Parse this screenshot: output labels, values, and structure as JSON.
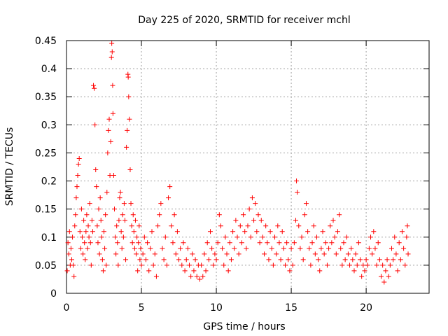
{
  "chart_data": {
    "type": "scatter",
    "title": "Day 225 of 2020, SRMTID for receiver mchl",
    "xlabel": "GPS time / hours",
    "ylabel": "SRMTID / TECUs",
    "xlim": [
      0,
      24.2
    ],
    "ylim": [
      0,
      0.45
    ],
    "xticks": [
      0,
      5,
      10,
      15,
      20
    ],
    "xtick_labels": [
      "0",
      "5",
      "10",
      "15",
      "20"
    ],
    "yticks": [
      0,
      0.05,
      0.1,
      0.15,
      0.2,
      0.25,
      0.3,
      0.35,
      0.4,
      0.45
    ],
    "ytick_labels": [
      "0",
      "0.05",
      "0.1",
      "0.15",
      "0.2",
      "0.25",
      "0.3",
      "0.35",
      "0.4",
      "0.45"
    ],
    "grid": true,
    "marker": "+",
    "color": "#ff0000",
    "series": [
      {
        "name": "SRMTID",
        "points": [
          [
            0.05,
            0.04
          ],
          [
            0.1,
            0.09
          ],
          [
            0.15,
            0.07
          ],
          [
            0.2,
            0.11
          ],
          [
            0.25,
            0.05
          ],
          [
            0.3,
            0.08
          ],
          [
            0.35,
            0.06
          ],
          [
            0.4,
            0.1
          ],
          [
            0.45,
            0.05
          ],
          [
            0.5,
            0.03
          ],
          [
            0.55,
            0.12
          ],
          [
            0.6,
            0.14
          ],
          [
            0.65,
            0.17
          ],
          [
            0.7,
            0.19
          ],
          [
            0.75,
            0.21
          ],
          [
            0.8,
            0.23
          ],
          [
            0.85,
            0.24
          ],
          [
            0.9,
            0.11
          ],
          [
            0.95,
            0.08
          ],
          [
            1.0,
            0.15
          ],
          [
            1.05,
            0.1
          ],
          [
            1.1,
            0.07
          ],
          [
            1.15,
            0.13
          ],
          [
            1.2,
            0.09
          ],
          [
            1.25,
            0.06
          ],
          [
            1.3,
            0.11
          ],
          [
            1.35,
            0.14
          ],
          [
            1.4,
            0.08
          ],
          [
            1.45,
            0.12
          ],
          [
            1.5,
            0.1
          ],
          [
            1.55,
            0.16
          ],
          [
            1.6,
            0.09
          ],
          [
            1.65,
            0.05
          ],
          [
            1.7,
            0.13
          ],
          [
            1.75,
            0.11
          ],
          [
            1.8,
            0.37
          ],
          [
            1.85,
            0.365
          ],
          [
            1.9,
            0.3
          ],
          [
            1.95,
            0.22
          ],
          [
            2.0,
            0.19
          ],
          [
            2.05,
            0.12
          ],
          [
            2.1,
            0.09
          ],
          [
            2.15,
            0.15
          ],
          [
            2.2,
            0.07
          ],
          [
            2.25,
            0.17
          ],
          [
            2.3,
            0.13
          ],
          [
            2.35,
            0.1
          ],
          [
            2.4,
            0.06
          ],
          [
            2.45,
            0.04
          ],
          [
            2.5,
            0.11
          ],
          [
            2.55,
            0.08
          ],
          [
            2.6,
            0.14
          ],
          [
            2.65,
            0.05
          ],
          [
            2.7,
            0.18
          ],
          [
            2.75,
            0.25
          ],
          [
            2.8,
            0.29
          ],
          [
            2.85,
            0.31
          ],
          [
            2.9,
            0.21
          ],
          [
            2.95,
            0.27
          ],
          [
            3.0,
            0.42
          ],
          [
            3.02,
            0.445
          ],
          [
            3.05,
            0.43
          ],
          [
            3.08,
            0.37
          ],
          [
            3.1,
            0.32
          ],
          [
            3.15,
            0.21
          ],
          [
            3.2,
            0.15
          ],
          [
            3.25,
            0.1
          ],
          [
            3.3,
            0.07
          ],
          [
            3.35,
            0.12
          ],
          [
            3.4,
            0.09
          ],
          [
            3.45,
            0.05
          ],
          [
            3.5,
            0.13
          ],
          [
            3.55,
            0.17
          ],
          [
            3.6,
            0.18
          ],
          [
            3.65,
            0.11
          ],
          [
            3.7,
            0.08
          ],
          [
            3.75,
            0.14
          ],
          [
            3.8,
            0.1
          ],
          [
            3.85,
            0.16
          ],
          [
            3.9,
            0.13
          ],
          [
            3.95,
            0.06
          ],
          [
            4.0,
            0.26
          ],
          [
            4.05,
            0.29
          ],
          [
            4.1,
            0.39
          ],
          [
            4.12,
            0.385
          ],
          [
            4.15,
            0.35
          ],
          [
            4.2,
            0.31
          ],
          [
            4.25,
            0.22
          ],
          [
            4.3,
            0.16
          ],
          [
            4.35,
            0.12
          ],
          [
            4.4,
            0.09
          ],
          [
            4.45,
            0.14
          ],
          [
            4.5,
            0.11
          ],
          [
            4.55,
            0.08
          ],
          [
            4.6,
            0.13
          ],
          [
            4.65,
            0.07
          ],
          [
            4.7,
            0.1
          ],
          [
            4.75,
            0.04
          ],
          [
            4.8,
            0.09
          ],
          [
            4.85,
            0.12
          ],
          [
            4.9,
            0.06
          ],
          [
            4.95,
            0.08
          ],
          [
            5.0,
            0.05
          ],
          [
            5.1,
            0.07
          ],
          [
            5.2,
            0.1
          ],
          [
            5.3,
            0.06
          ],
          [
            5.4,
            0.09
          ],
          [
            5.5,
            0.04
          ],
          [
            5.6,
            0.08
          ],
          [
            5.7,
            0.11
          ],
          [
            5.8,
            0.05
          ],
          [
            5.9,
            0.07
          ],
          [
            6.0,
            0.03
          ],
          [
            6.1,
            0.12
          ],
          [
            6.2,
            0.14
          ],
          [
            6.3,
            0.16
          ],
          [
            6.4,
            0.08
          ],
          [
            6.5,
            0.06
          ],
          [
            6.6,
            0.1
          ],
          [
            6.7,
            0.05
          ],
          [
            6.8,
            0.17
          ],
          [
            6.9,
            0.19
          ],
          [
            7.0,
            0.12
          ],
          [
            7.1,
            0.09
          ],
          [
            7.2,
            0.14
          ],
          [
            7.3,
            0.07
          ],
          [
            7.4,
            0.11
          ],
          [
            7.5,
            0.06
          ],
          [
            7.6,
            0.08
          ],
          [
            7.7,
            0.05
          ],
          [
            7.8,
            0.09
          ],
          [
            7.9,
            0.04
          ],
          [
            8.0,
            0.06
          ],
          [
            8.1,
            0.08
          ],
          [
            8.2,
            0.05
          ],
          [
            8.3,
            0.03
          ],
          [
            8.4,
            0.07
          ],
          [
            8.5,
            0.04
          ],
          [
            8.6,
            0.06
          ],
          [
            8.7,
            0.03
          ],
          [
            8.8,
            0.05
          ],
          [
            8.9,
            0.025
          ],
          [
            9.0,
            0.05
          ],
          [
            9.1,
            0.03
          ],
          [
            9.2,
            0.07
          ],
          [
            9.3,
            0.04
          ],
          [
            9.4,
            0.09
          ],
          [
            9.5,
            0.06
          ],
          [
            9.6,
            0.11
          ],
          [
            9.7,
            0.08
          ],
          [
            9.8,
            0.05
          ],
          [
            9.9,
            0.07
          ],
          [
            10.0,
            0.06
          ],
          [
            10.1,
            0.09
          ],
          [
            10.2,
            0.14
          ],
          [
            10.3,
            0.12
          ],
          [
            10.4,
            0.08
          ],
          [
            10.5,
            0.05
          ],
          [
            10.6,
            0.1
          ],
          [
            10.7,
            0.07
          ],
          [
            10.8,
            0.04
          ],
          [
            10.9,
            0.09
          ],
          [
            11.0,
            0.06
          ],
          [
            11.1,
            0.11
          ],
          [
            11.2,
            0.08
          ],
          [
            11.3,
            0.13
          ],
          [
            11.4,
            0.1
          ],
          [
            11.5,
            0.07
          ],
          [
            11.6,
            0.12
          ],
          [
            11.7,
            0.09
          ],
          [
            11.8,
            0.14
          ],
          [
            11.9,
            0.11
          ],
          [
            12.0,
            0.08
          ],
          [
            12.1,
            0.12
          ],
          [
            12.2,
            0.15
          ],
          [
            12.3,
            0.1
          ],
          [
            12.4,
            0.17
          ],
          [
            12.5,
            0.13
          ],
          [
            12.6,
            0.16
          ],
          [
            12.7,
            0.11
          ],
          [
            12.8,
            0.14
          ],
          [
            12.9,
            0.09
          ],
          [
            13.0,
            0.13
          ],
          [
            13.1,
            0.1
          ],
          [
            13.2,
            0.07
          ],
          [
            13.3,
            0.12
          ],
          [
            13.4,
            0.09
          ],
          [
            13.5,
            0.06
          ],
          [
            13.6,
            0.11
          ],
          [
            13.7,
            0.08
          ],
          [
            13.8,
            0.05
          ],
          [
            13.9,
            0.1
          ],
          [
            14.0,
            0.07
          ],
          [
            14.1,
            0.12
          ],
          [
            14.2,
            0.09
          ],
          [
            14.3,
            0.06
          ],
          [
            14.4,
            0.11
          ],
          [
            14.5,
            0.08
          ],
          [
            14.6,
            0.05
          ],
          [
            14.7,
            0.09
          ],
          [
            14.8,
            0.06
          ],
          [
            14.9,
            0.04
          ],
          [
            15.0,
            0.08
          ],
          [
            15.1,
            0.05
          ],
          [
            15.2,
            0.09
          ],
          [
            15.3,
            0.13
          ],
          [
            15.35,
            0.2
          ],
          [
            15.4,
            0.18
          ],
          [
            15.5,
            0.12
          ],
          [
            15.6,
            0.08
          ],
          [
            15.7,
            0.1
          ],
          [
            15.8,
            0.06
          ],
          [
            15.9,
            0.14
          ],
          [
            16.0,
            0.16
          ],
          [
            16.1,
            0.11
          ],
          [
            16.2,
            0.08
          ],
          [
            16.3,
            0.05
          ],
          [
            16.4,
            0.09
          ],
          [
            16.5,
            0.12
          ],
          [
            16.6,
            0.07
          ],
          [
            16.7,
            0.1
          ],
          [
            16.8,
            0.06
          ],
          [
            16.9,
            0.04
          ],
          [
            17.0,
            0.08
          ],
          [
            17.1,
            0.11
          ],
          [
            17.2,
            0.07
          ],
          [
            17.3,
            0.09
          ],
          [
            17.4,
            0.05
          ],
          [
            17.5,
            0.08
          ],
          [
            17.6,
            0.12
          ],
          [
            17.7,
            0.09
          ],
          [
            17.8,
            0.13
          ],
          [
            17.9,
            0.1
          ],
          [
            18.0,
            0.07
          ],
          [
            18.1,
            0.11
          ],
          [
            18.2,
            0.14
          ],
          [
            18.3,
            0.08
          ],
          [
            18.4,
            0.05
          ],
          [
            18.5,
            0.09
          ],
          [
            18.6,
            0.06
          ],
          [
            18.7,
            0.1
          ],
          [
            18.8,
            0.07
          ],
          [
            18.9,
            0.05
          ],
          [
            19.0,
            0.08
          ],
          [
            19.1,
            0.06
          ],
          [
            19.2,
            0.04
          ],
          [
            19.3,
            0.07
          ],
          [
            19.4,
            0.05
          ],
          [
            19.5,
            0.09
          ],
          [
            19.6,
            0.06
          ],
          [
            19.7,
            0.03
          ],
          [
            19.8,
            0.05
          ],
          [
            19.9,
            0.04
          ],
          [
            20.0,
            0.06
          ],
          [
            20.1,
            0.05
          ],
          [
            20.2,
            0.08
          ],
          [
            20.3,
            0.1
          ],
          [
            20.4,
            0.07
          ],
          [
            20.5,
            0.11
          ],
          [
            20.6,
            0.08
          ],
          [
            20.7,
            0.05
          ],
          [
            20.8,
            0.09
          ],
          [
            20.9,
            0.06
          ],
          [
            21.0,
            0.03
          ],
          [
            21.1,
            0.05
          ],
          [
            21.2,
            0.02
          ],
          [
            21.3,
            0.04
          ],
          [
            21.4,
            0.06
          ],
          [
            21.5,
            0.03
          ],
          [
            21.6,
            0.05
          ],
          [
            21.7,
            0.08
          ],
          [
            21.8,
            0.06
          ],
          [
            21.9,
            0.1
          ],
          [
            22.0,
            0.07
          ],
          [
            22.1,
            0.04
          ],
          [
            22.2,
            0.09
          ],
          [
            22.3,
            0.06
          ],
          [
            22.4,
            0.11
          ],
          [
            22.5,
            0.08
          ],
          [
            22.6,
            0.05
          ],
          [
            22.7,
            0.1
          ],
          [
            22.75,
            0.12
          ],
          [
            22.8,
            0.07
          ]
        ]
      }
    ]
  }
}
